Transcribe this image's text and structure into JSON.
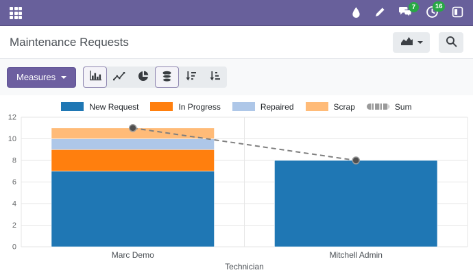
{
  "navbar": {
    "badges": {
      "messages": "7",
      "activities": "16"
    },
    "icons": [
      "apps-grid",
      "droplet",
      "pencil",
      "messages",
      "activity-clock",
      "side-panel"
    ],
    "colors": {
      "background": "#68609b",
      "badge": "#28a745"
    }
  },
  "header": {
    "title": "Maintenance Requests",
    "view_switcher_icon": "area-chart",
    "search_icon": "magnifier"
  },
  "toolbar": {
    "measures_label": "Measures",
    "buttons": [
      {
        "name": "bar-chart",
        "active": true
      },
      {
        "name": "line-chart",
        "active": false
      },
      {
        "name": "pie-chart",
        "active": false
      },
      {
        "name": "stacked-toggle",
        "active": true
      },
      {
        "name": "sort-descending",
        "active": false
      },
      {
        "name": "sort-ascending",
        "active": false
      }
    ]
  },
  "chart_data": {
    "type": "bar",
    "stacked": true,
    "title": "",
    "xlabel": "Technician",
    "ylabel": "",
    "categories": [
      "Marc Demo",
      "Mitchell Admin"
    ],
    "series": [
      {
        "name": "New Request",
        "color": "#1f77b4",
        "values": [
          7,
          8
        ]
      },
      {
        "name": "In Progress",
        "color": "#ff7f0e",
        "values": [
          2,
          0
        ]
      },
      {
        "name": "Repaired",
        "color": "#aec7e8",
        "values": [
          1,
          0
        ]
      },
      {
        "name": "Scrap",
        "color": "#ffbb78",
        "values": [
          1,
          0
        ]
      }
    ],
    "line_series": {
      "name": "Sum",
      "color": "#7f7f7f",
      "values": [
        11,
        8
      ]
    },
    "ylim": [
      0,
      12
    ],
    "yticks": [
      0,
      2,
      4,
      6,
      8,
      10,
      12
    ],
    "grid": true,
    "legend_position": "top"
  }
}
